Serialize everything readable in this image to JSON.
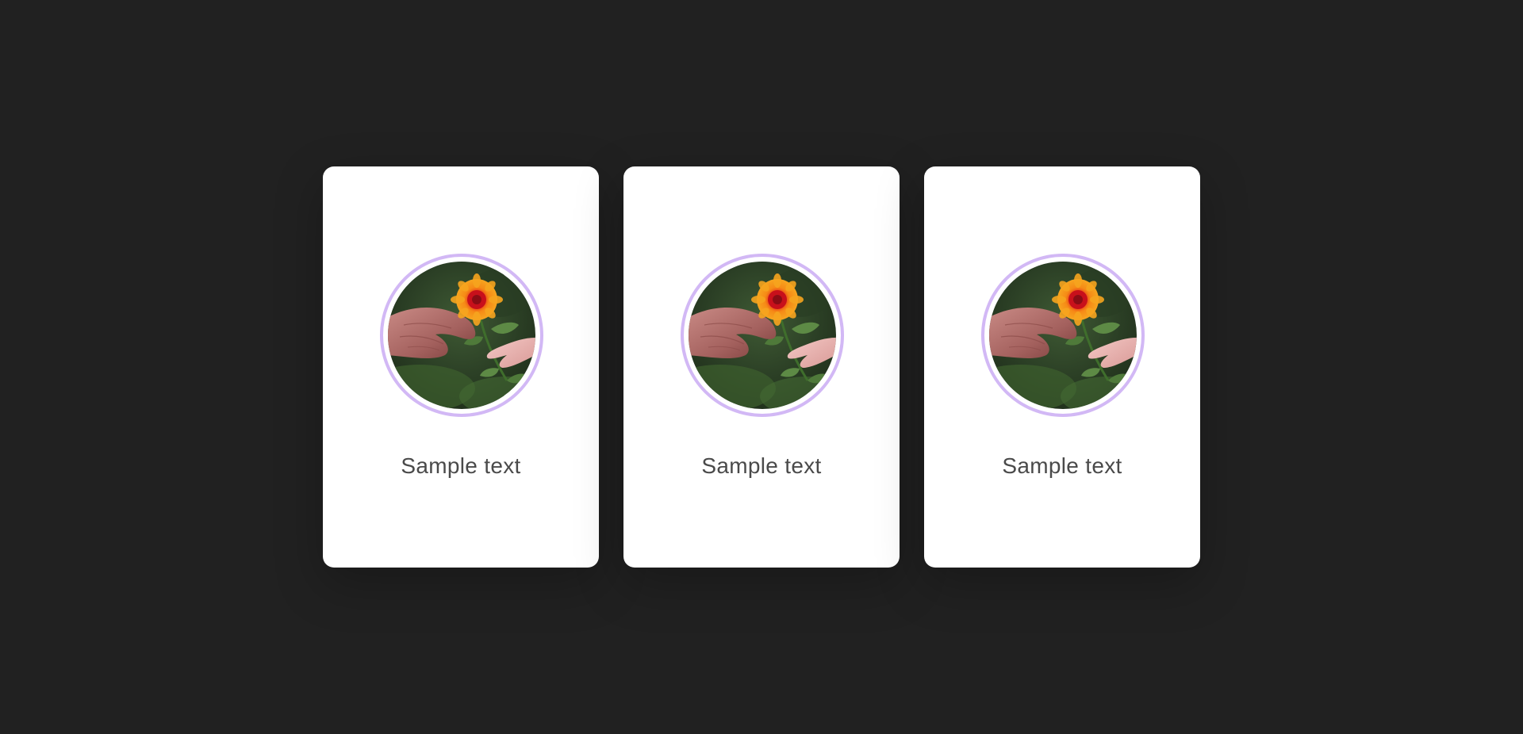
{
  "cards": [
    {
      "caption": "Sample text",
      "image": "flower-handoff-photo"
    },
    {
      "caption": "Sample text",
      "image": "flower-handoff-photo"
    },
    {
      "caption": "Sample text",
      "image": "flower-handoff-photo"
    }
  ],
  "colors": {
    "background": "#212121",
    "card": "#ffffff",
    "ring": "#d2b8f5",
    "caption": "#4a4a4a"
  }
}
